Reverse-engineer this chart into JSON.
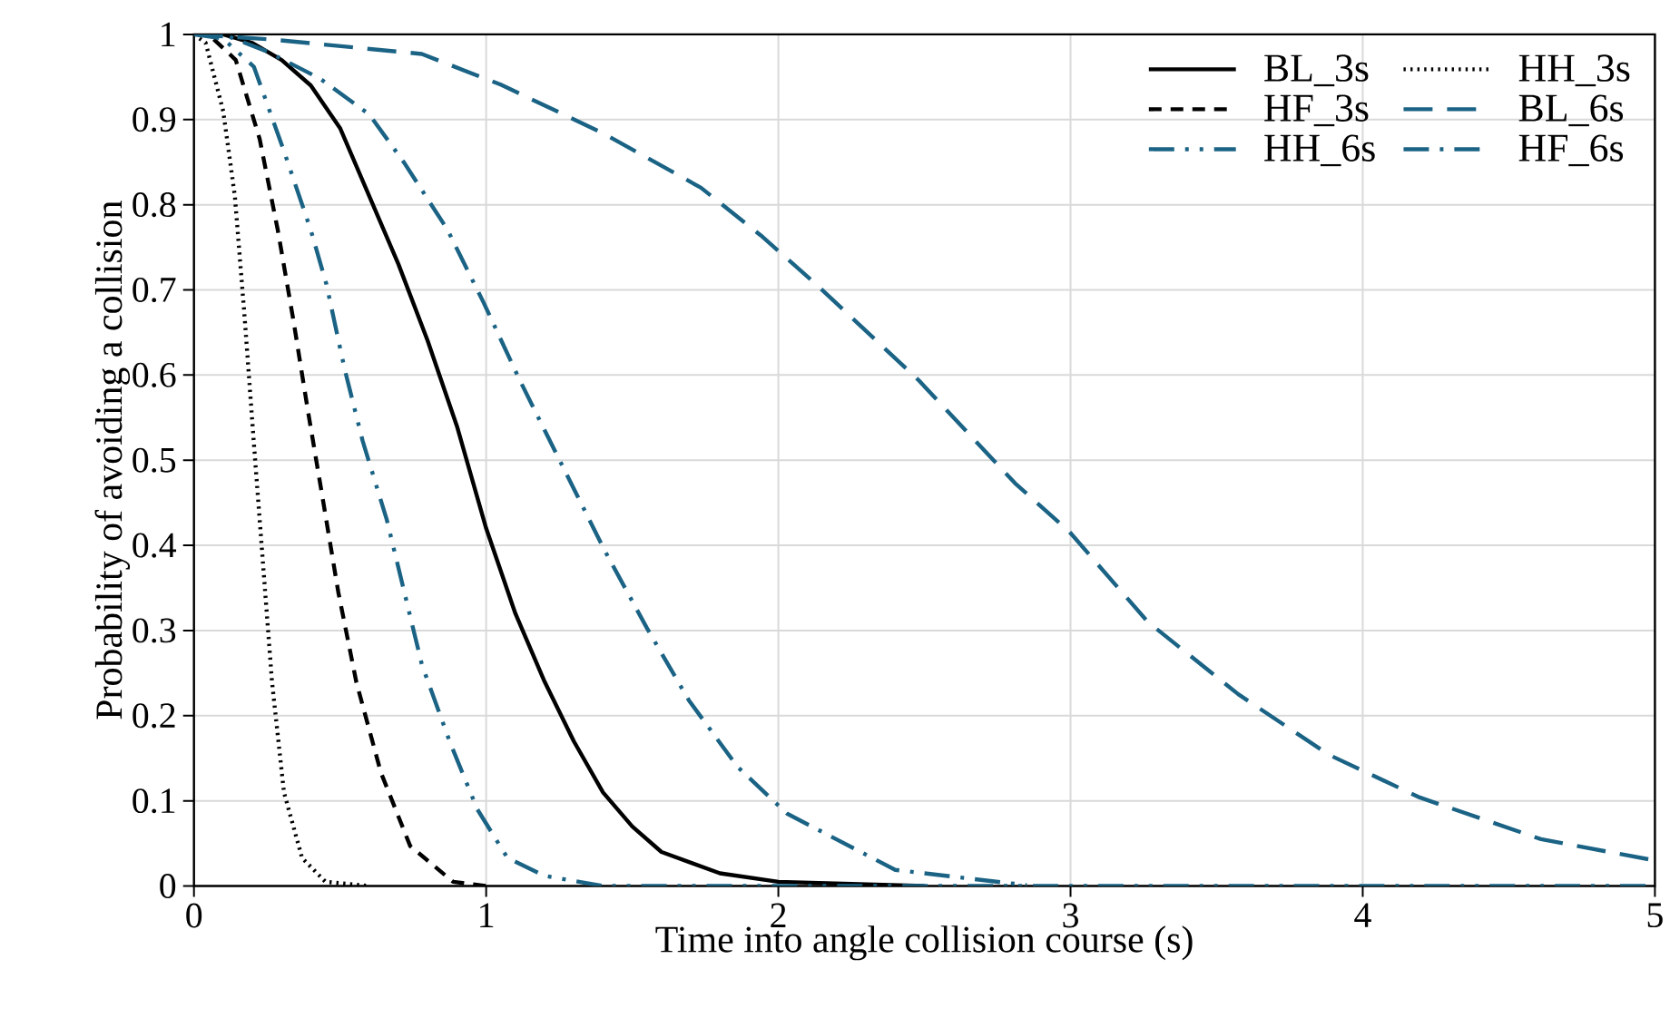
{
  "chart_data": {
    "type": "line",
    "xlabel": "Time into angle collision course (s)",
    "ylabel": "Probability of avoiding a collision",
    "xlim": [
      0,
      5
    ],
    "ylim": [
      0,
      1
    ],
    "xticks": [
      0,
      1,
      2,
      3,
      4,
      5
    ],
    "yticks": [
      0,
      0.1,
      0.2,
      0.3,
      0.4,
      0.5,
      0.6,
      0.7,
      0.8,
      0.9,
      1
    ],
    "grid": true,
    "legend": "top right",
    "marker": "none",
    "series": [
      {
        "name": "BL_3s",
        "color": "#000000",
        "line_style": "solid",
        "x": [
          0,
          0.1,
          0.2,
          0.3,
          0.4,
          0.5,
          0.6,
          0.7,
          0.8,
          0.9,
          1.0,
          1.1,
          1.2,
          1.3,
          1.4,
          1.5,
          1.6,
          1.8,
          2.0,
          2.5
        ],
        "values": [
          1,
          1,
          0.99,
          0.97,
          0.94,
          0.89,
          0.81,
          0.73,
          0.64,
          0.54,
          0.42,
          0.32,
          0.24,
          0.17,
          0.11,
          0.07,
          0.04,
          0.015,
          0.005,
          0
        ]
      },
      {
        "name": "HH_3s",
        "color": "#000000",
        "line_style": "dotted",
        "x": [
          0,
          0.04,
          0.1,
          0.14,
          0.174,
          0.205,
          0.236,
          0.267,
          0.308,
          0.37,
          0.45,
          0.6
        ],
        "values": [
          1,
          0.99,
          0.91,
          0.81,
          0.665,
          0.52,
          0.38,
          0.24,
          0.11,
          0.033,
          0.005,
          0
        ]
      },
      {
        "name": "HF_3s",
        "color": "#000000",
        "line_style": "dashed",
        "x": [
          0,
          0.05,
          0.143,
          0.225,
          0.287,
          0.34,
          0.39,
          0.443,
          0.494,
          0.556,
          0.64,
          0.74,
          0.887,
          1.0
        ],
        "values": [
          1,
          1,
          0.97,
          0.877,
          0.77,
          0.665,
          0.558,
          0.45,
          0.345,
          0.239,
          0.133,
          0.047,
          0.005,
          0
        ]
      },
      {
        "name": "BL_6s",
        "color": "#1b6385",
        "line_style": "long dashed",
        "x": [
          0,
          0.267,
          0.78,
          1.05,
          1.4,
          1.735,
          1.94,
          2.128,
          2.48,
          2.81,
          2.996,
          3.265,
          3.575,
          3.885,
          4.195,
          4.61,
          5.0
        ],
        "values": [
          1,
          0.994,
          0.977,
          0.941,
          0.884,
          0.82,
          0.764,
          0.707,
          0.594,
          0.473,
          0.416,
          0.31,
          0.225,
          0.154,
          0.104,
          0.055,
          0.03
        ]
      },
      {
        "name": "HH_6s",
        "color": "#1b6385",
        "line_style": "dash-dot-dot",
        "x": [
          0,
          0.1,
          0.205,
          0.308,
          0.4,
          0.453,
          0.515,
          0.577,
          0.66,
          0.72,
          0.78,
          0.877,
          0.97,
          1.073,
          1.2,
          1.4,
          5
        ],
        "values": [
          1,
          0.995,
          0.962,
          0.863,
          0.77,
          0.707,
          0.608,
          0.523,
          0.43,
          0.345,
          0.26,
          0.168,
          0.09,
          0.033,
          0.012,
          0,
          0
        ]
      },
      {
        "name": "HF_6s",
        "color": "#1b6385",
        "line_style": "dash-dot",
        "x": [
          0,
          0.1,
          0.25,
          0.432,
          0.6,
          0.72,
          0.867,
          0.99,
          1.115,
          1.26,
          1.404,
          1.55,
          1.694,
          1.86,
          2.03,
          2.4,
          2.85
        ],
        "values": [
          1,
          1,
          0.98,
          0.948,
          0.906,
          0.849,
          0.771,
          0.686,
          0.594,
          0.494,
          0.395,
          0.303,
          0.218,
          0.14,
          0.085,
          0.019,
          0.001
        ]
      }
    ]
  }
}
